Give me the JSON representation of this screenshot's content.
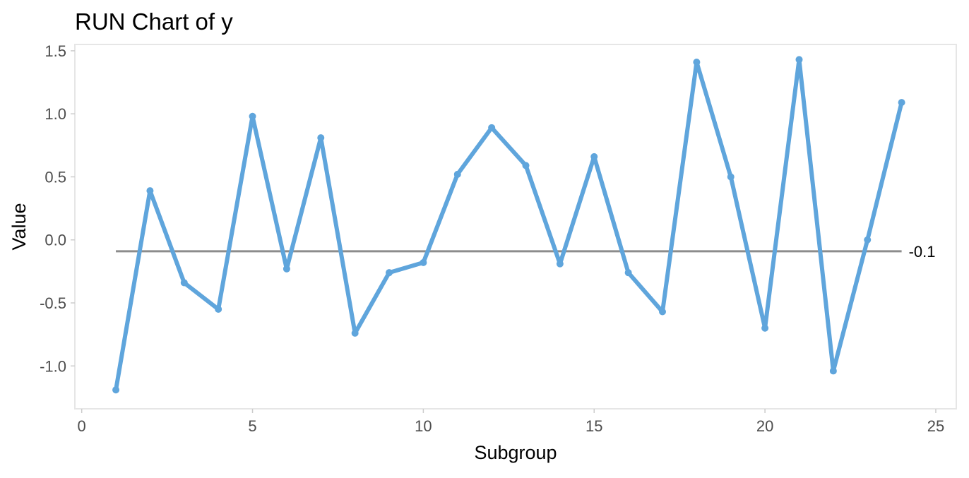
{
  "chart_data": {
    "type": "line",
    "title": "RUN Chart of y",
    "xlabel": "Subgroup",
    "ylabel": "Value",
    "xlim": [
      -0.2,
      25.6
    ],
    "ylim": [
      -1.34,
      1.55
    ],
    "x_ticks": [
      0,
      5,
      10,
      15,
      20,
      25
    ],
    "y_ticks": [
      -1.0,
      -0.5,
      0.0,
      0.5,
      1.0,
      1.5
    ],
    "x_tick_labels": [
      "0",
      "5",
      "10",
      "15",
      "20",
      "25"
    ],
    "y_tick_labels": [
      "-1.0",
      "-0.5",
      "0.0",
      "0.5",
      "1.0",
      "1.5"
    ],
    "grid": false,
    "x": [
      1,
      2,
      3,
      4,
      5,
      6,
      7,
      8,
      9,
      10,
      11,
      12,
      13,
      14,
      15,
      16,
      17,
      18,
      19,
      20,
      21,
      22,
      23,
      24
    ],
    "series": [
      {
        "values": [
          -1.19,
          0.39,
          -0.34,
          -0.55,
          0.98,
          -0.23,
          0.81,
          -0.74,
          -0.26,
          -0.18,
          0.52,
          0.89,
          0.59,
          -0.19,
          0.66,
          -0.26,
          -0.57,
          1.41,
          0.5,
          -0.7,
          1.43,
          -1.04,
          0.0,
          1.09
        ],
        "color": "#5fa5dc"
      }
    ],
    "center_line": {
      "value": -0.09,
      "label": "-0.1",
      "color": "#8c8c8c"
    },
    "panel_border_color": "#e6e6e6"
  }
}
